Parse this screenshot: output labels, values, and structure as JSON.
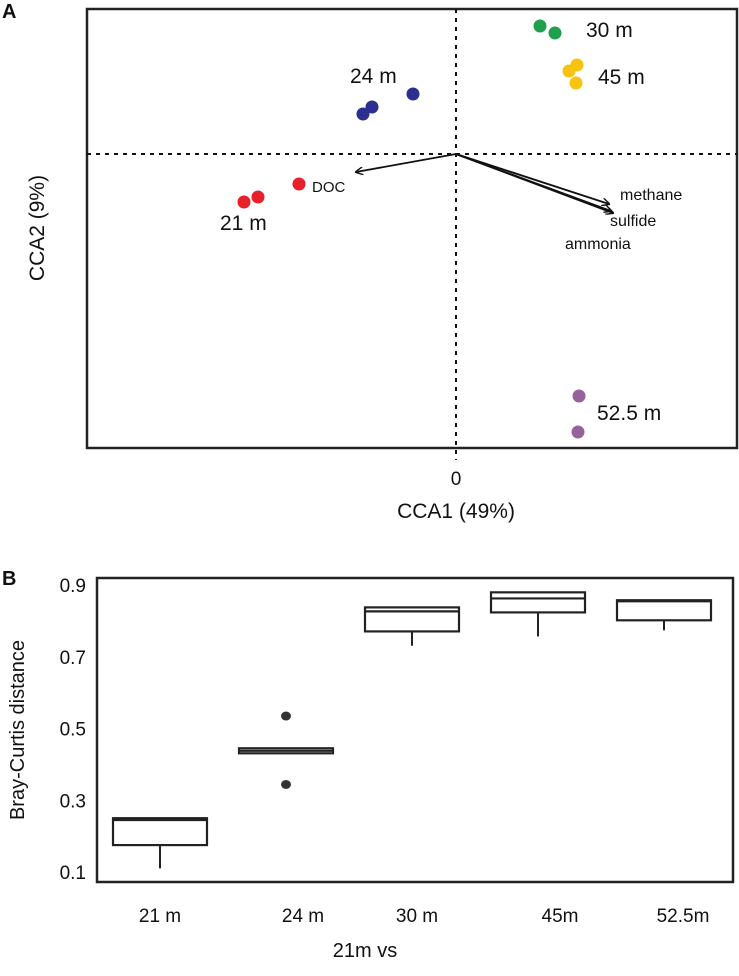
{
  "chart_data": [
    {
      "panel": "A",
      "type": "scatter",
      "title": "",
      "xlabel": "CCA1 (49%)",
      "ylabel": "CCA2 (9%)",
      "xlim": [
        -3.69,
        2.81
      ],
      "ylim": [
        -2.94,
        1.45
      ],
      "x_ticks": [
        {
          "value": 0,
          "label": "0"
        }
      ],
      "reference_lines": {
        "x": 0,
        "y": 0,
        "style": "dotted"
      },
      "series": [
        {
          "name": "21 m",
          "color": "#e8202a",
          "points": [
            [
              -2.12,
              -0.48
            ],
            [
              -1.98,
              -0.43
            ],
            [
              -1.57,
              -0.3
            ]
          ]
        },
        {
          "name": "24 m",
          "color": "#2b2f8f",
          "points": [
            [
              -0.93,
              0.4
            ],
            [
              -0.84,
              0.47
            ],
            [
              -0.43,
              0.6
            ]
          ]
        },
        {
          "name": "30 m",
          "color": "#1ea04c",
          "points": [
            [
              0.84,
              1.28
            ],
            [
              0.99,
              1.21
            ]
          ]
        },
        {
          "name": "45 m",
          "color": "#f7c30f",
          "points": [
            [
              1.21,
              0.89
            ],
            [
              1.13,
              0.83
            ],
            [
              1.2,
              0.71
            ]
          ]
        },
        {
          "name": "52.5 m",
          "color": "#98619c",
          "points": [
            [
              1.23,
              -2.42
            ],
            [
              1.22,
              -2.78
            ]
          ]
        }
      ],
      "vectors": [
        {
          "name": "DOC",
          "x": -1.0,
          "y": -0.18
        },
        {
          "name": "methane",
          "x": 1.53,
          "y": -0.5
        },
        {
          "name": "sulfide",
          "x": 1.57,
          "y": -0.59
        },
        {
          "name": "ammonia",
          "x": 1.55,
          "y": -0.57
        }
      ]
    },
    {
      "panel": "B",
      "type": "box",
      "title": "",
      "xlabel": "21m vs",
      "ylabel": "Bray-Curtis distance",
      "ylim": [
        0.072,
        0.92
      ],
      "y_ticks": [
        0.1,
        0.3,
        0.5,
        0.7,
        0.9
      ],
      "y_tick_labels": [
        "0.1",
        "0.3",
        "0.5",
        "0.7",
        "0.9"
      ],
      "categories": [
        "21 m",
        "24 m",
        "30 m",
        "45m",
        "52.5m"
      ],
      "boxes": [
        {
          "whisker_low": 0.11,
          "q1": 0.175,
          "median": 0.245,
          "q3": 0.25,
          "whisker_high": 0.25,
          "outliers": []
        },
        {
          "whisker_low": 0.431,
          "q1": 0.431,
          "median": 0.438,
          "q3": 0.445,
          "whisker_high": 0.445,
          "outliers": [
            0.535,
            0.344
          ]
        },
        {
          "whisker_low": 0.731,
          "q1": 0.771,
          "median": 0.827,
          "q3": 0.838,
          "whisker_high": 0.838,
          "outliers": []
        },
        {
          "whisker_low": 0.757,
          "q1": 0.824,
          "median": 0.863,
          "q3": 0.88,
          "whisker_high": 0.88,
          "outliers": []
        },
        {
          "whisker_low": 0.774,
          "q1": 0.802,
          "median": 0.855,
          "q3": 0.858,
          "whisker_high": 0.858,
          "outliers": []
        }
      ]
    }
  ],
  "panel_labels": [
    "A",
    "B"
  ]
}
